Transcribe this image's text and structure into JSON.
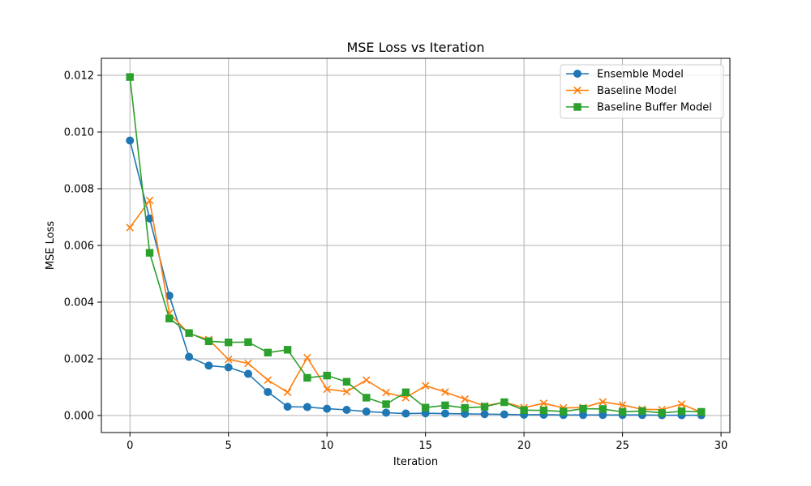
{
  "chart_data": {
    "type": "line",
    "title": "MSE Loss vs Iteration",
    "xlabel": "Iteration",
    "ylabel": "MSE Loss",
    "xlim": [
      -1.45,
      30.45
    ],
    "ylim": [
      -0.0006,
      0.0126
    ],
    "x_ticks": [
      0,
      5,
      10,
      15,
      20,
      25,
      30
    ],
    "x_tick_labels": [
      "0",
      "5",
      "10",
      "15",
      "20",
      "25",
      "30"
    ],
    "y_ticks": [
      0.0,
      0.002,
      0.004,
      0.006,
      0.008,
      0.01,
      0.012
    ],
    "y_tick_labels": [
      "0.000",
      "0.002",
      "0.004",
      "0.006",
      "0.008",
      "0.010",
      "0.012"
    ],
    "grid": true,
    "legend_position": "top-right",
    "x": [
      0,
      1,
      2,
      3,
      4,
      5,
      6,
      7,
      8,
      9,
      10,
      11,
      12,
      13,
      14,
      15,
      16,
      17,
      18,
      19,
      20,
      21,
      22,
      23,
      24,
      25,
      26,
      27,
      28,
      29
    ],
    "series": [
      {
        "name": "Ensemble Model",
        "color": "#1f77b4",
        "marker": "circle",
        "values": [
          0.0097,
          0.00695,
          0.00423,
          0.00207,
          0.00176,
          0.0017,
          0.00147,
          0.00083,
          0.00031,
          0.0003,
          0.00024,
          0.0002,
          0.00014,
          0.0001,
          7e-05,
          8e-05,
          7e-05,
          6e-05,
          5e-05,
          4e-05,
          3e-05,
          3e-05,
          2e-05,
          2e-05,
          2e-05,
          2e-05,
          2e-05,
          1e-05,
          1e-05,
          1e-05
        ]
      },
      {
        "name": "Baseline Model",
        "color": "#ff7f0e",
        "marker": "x",
        "values": [
          0.00663,
          0.00759,
          0.00361,
          0.00289,
          0.00268,
          0.00198,
          0.00184,
          0.00125,
          0.00082,
          0.00204,
          0.00093,
          0.00084,
          0.00125,
          0.00081,
          0.00063,
          0.00105,
          0.00083,
          0.00058,
          0.00034,
          0.00047,
          0.00028,
          0.00043,
          0.00027,
          0.00028,
          0.00048,
          0.00037,
          0.00022,
          0.00021,
          0.0004,
          0.00011
        ]
      },
      {
        "name": "Baseline Buffer Model",
        "color": "#2ca02c",
        "marker": "square",
        "values": [
          0.01194,
          0.00574,
          0.00342,
          0.00291,
          0.00262,
          0.00258,
          0.00259,
          0.00222,
          0.00232,
          0.00133,
          0.00141,
          0.00119,
          0.00063,
          0.0004,
          0.00082,
          0.00028,
          0.00036,
          0.00027,
          0.00031,
          0.00047,
          0.00019,
          0.00018,
          0.00014,
          0.00024,
          0.00023,
          0.00013,
          0.00016,
          9e-05,
          0.00015,
          0.00013
        ]
      }
    ]
  }
}
